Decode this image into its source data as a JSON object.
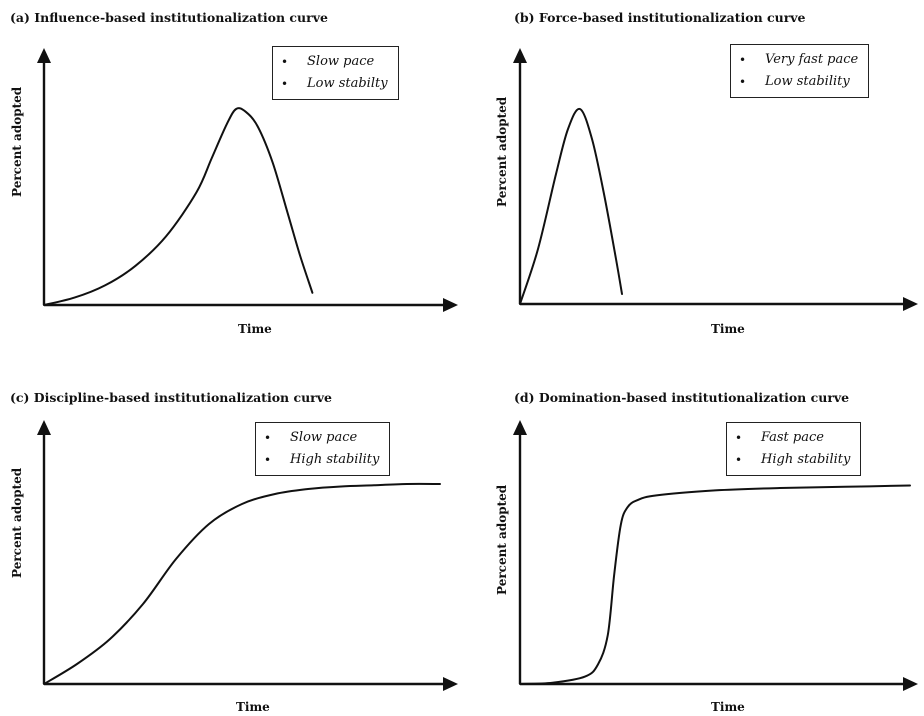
{
  "chart_data": [
    {
      "type": "line",
      "title": "(a) Influence-based institutionalization curve",
      "xlabel": "Time",
      "ylabel": "Percent adopted",
      "legend": [
        "Slow pace",
        "Low stabilty"
      ],
      "series": [
        {
          "x": [
            0,
            10,
            20,
            30,
            40,
            50,
            55,
            60,
            63,
            66,
            70,
            75,
            80,
            84,
            88
          ],
          "y": [
            0,
            3,
            8,
            16,
            28,
            46,
            60,
            74,
            80,
            79,
            73,
            58,
            37,
            20,
            5
          ]
        }
      ]
    },
    {
      "type": "line",
      "title": "(b) Force-based institutionalization curve",
      "xlabel": "Time",
      "ylabel": "Percent adopted",
      "legend": [
        "Very fast pace",
        "Low stability"
      ],
      "series": [
        {
          "x": [
            0,
            6,
            12,
            16,
            20,
            24,
            28,
            32,
            34
          ],
          "y": [
            0,
            22,
            52,
            70,
            78,
            66,
            44,
            18,
            4
          ]
        }
      ]
    },
    {
      "type": "line",
      "title": "(c) Discipline-based institutionalization curve",
      "xlabel": "Time",
      "ylabel": "Percent adopted",
      "legend": [
        "Slow pace",
        "High stability"
      ],
      "series": [
        {
          "x": [
            0,
            10,
            20,
            30,
            40,
            50,
            60,
            70,
            80,
            90,
            100,
            110,
            120
          ],
          "y": [
            0,
            8,
            18,
            32,
            50,
            64,
            72,
            76,
            78,
            79,
            79.5,
            80,
            80
          ]
        }
      ]
    },
    {
      "type": "line",
      "title": "(d) Domination-based institutionalization curve",
      "xlabel": "Time",
      "ylabel": "Percent adopted",
      "legend": [
        "Fast pace",
        "High stability"
      ],
      "series": [
        {
          "x": [
            0,
            10,
            20,
            24,
            27,
            29,
            31,
            33,
            36,
            42,
            60,
            80,
            100,
            120
          ],
          "y": [
            0,
            0.5,
            3,
            8,
            20,
            45,
            65,
            72,
            75,
            77,
            79,
            80,
            80.5,
            81
          ]
        }
      ]
    }
  ]
}
